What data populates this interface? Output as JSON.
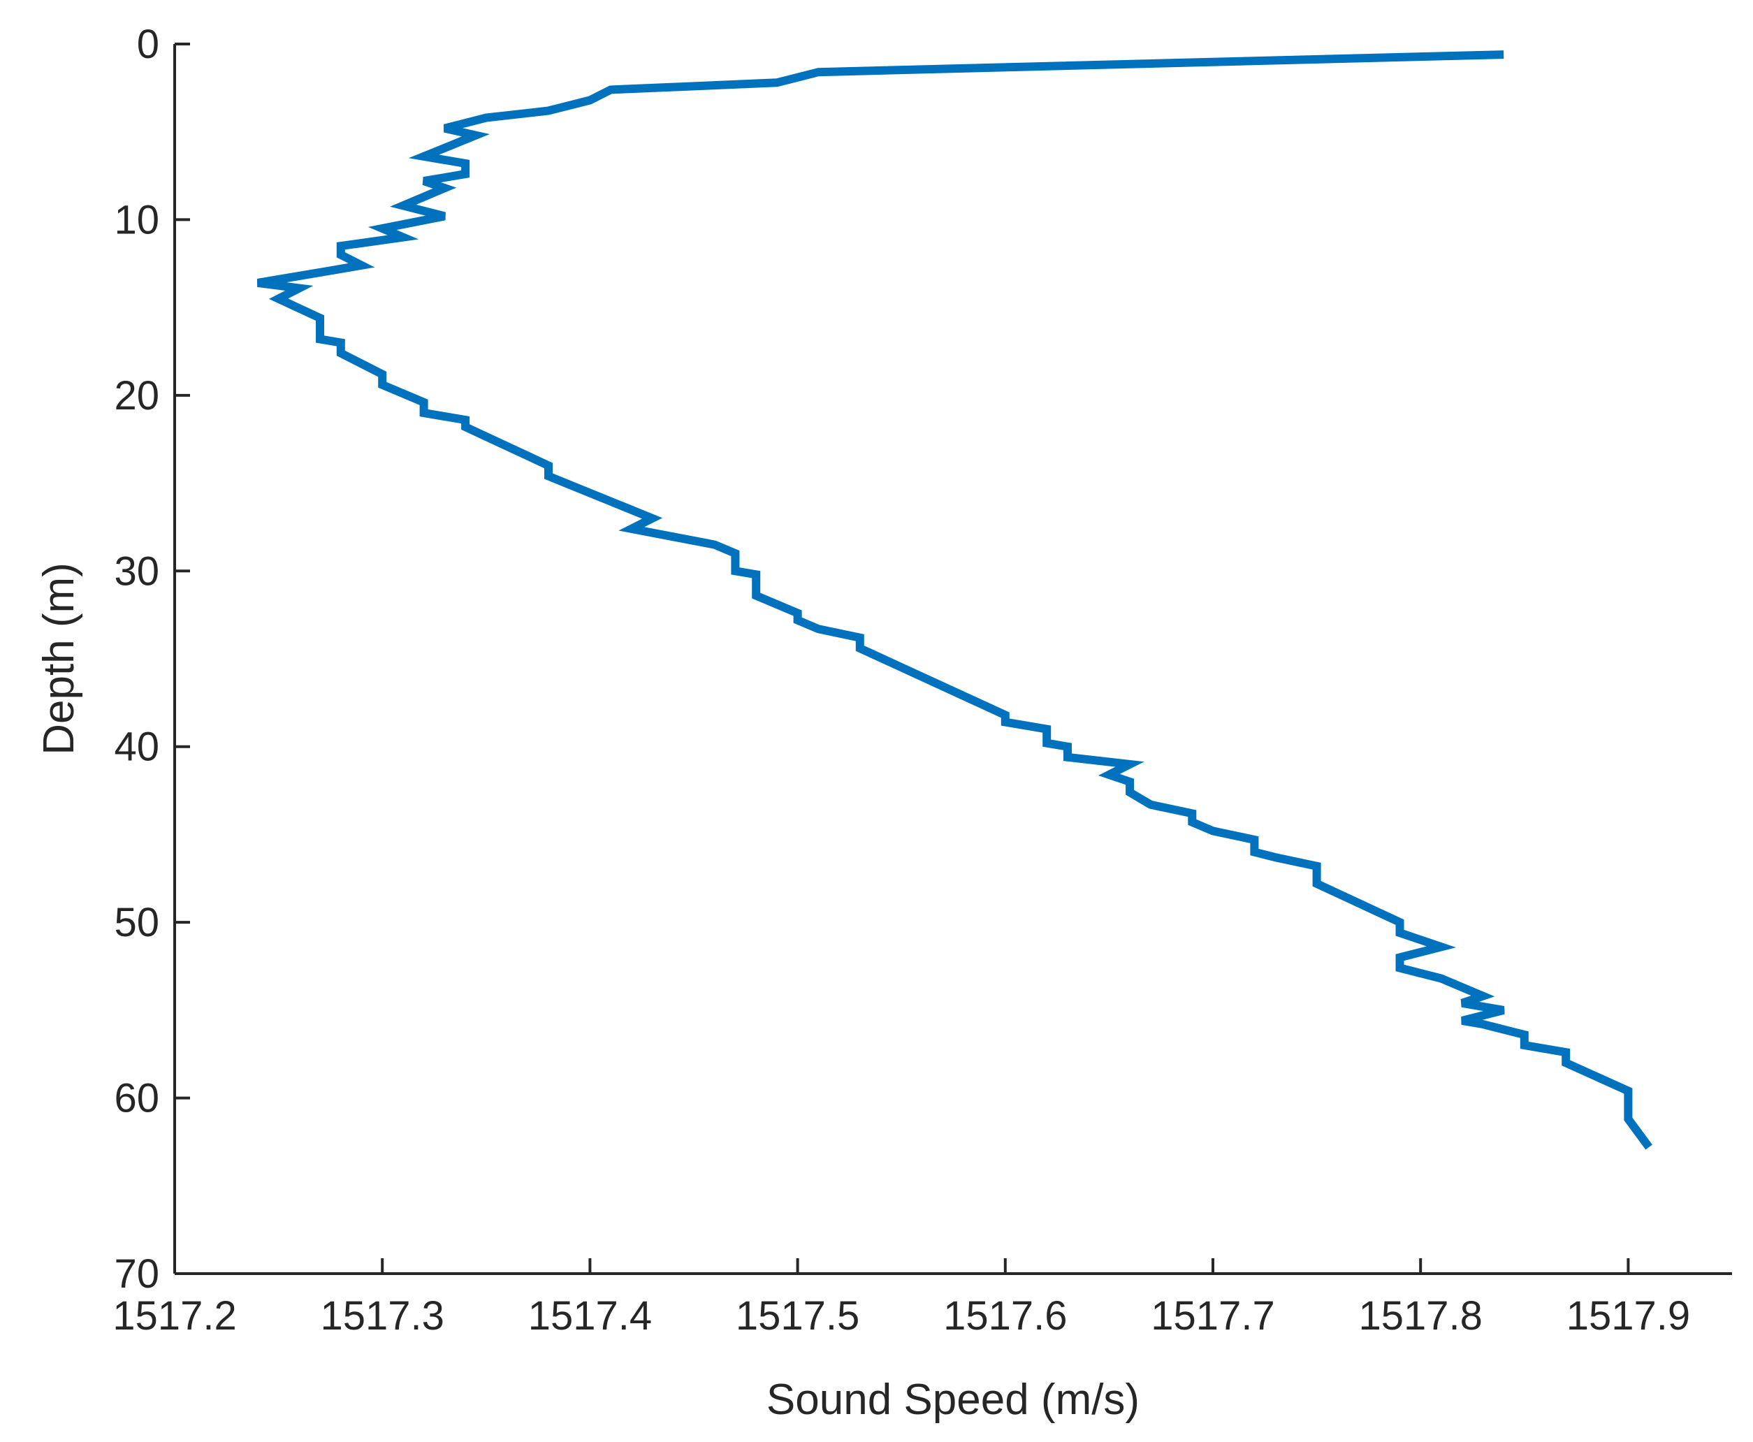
{
  "chart_data": {
    "type": "line",
    "title": "",
    "xlabel": "Sound Speed (m/s)",
    "ylabel": "Depth (m)",
    "xlim": [
      1517.2,
      1517.95
    ],
    "ylim": [
      0,
      70
    ],
    "y_reversed": true,
    "x_ticks": [
      "1517.2",
      "1517.3",
      "1517.4",
      "1517.5",
      "1517.6",
      "1517.7",
      "1517.8",
      "1517.9"
    ],
    "y_ticks": [
      "0",
      "10",
      "20",
      "30",
      "40",
      "50",
      "60",
      "70"
    ],
    "grid": false,
    "legend": "none",
    "series": [
      {
        "color": "#0072BD",
        "points": [
          [
            1517.84,
            0.6
          ],
          [
            1517.51,
            1.6
          ],
          [
            1517.49,
            2.2
          ],
          [
            1517.41,
            2.6
          ],
          [
            1517.4,
            3.2
          ],
          [
            1517.38,
            3.8
          ],
          [
            1517.35,
            4.2
          ],
          [
            1517.33,
            4.8
          ],
          [
            1517.345,
            5.2
          ],
          [
            1517.32,
            6.4
          ],
          [
            1517.34,
            6.8
          ],
          [
            1517.34,
            7.4
          ],
          [
            1517.32,
            7.8
          ],
          [
            1517.33,
            8.2
          ],
          [
            1517.31,
            9.2
          ],
          [
            1517.33,
            9.8
          ],
          [
            1517.3,
            10.5
          ],
          [
            1517.31,
            11.0
          ],
          [
            1517.28,
            11.5
          ],
          [
            1517.28,
            12.0
          ],
          [
            1517.29,
            12.6
          ],
          [
            1517.27,
            13.0
          ],
          [
            1517.24,
            13.6
          ],
          [
            1517.26,
            13.9
          ],
          [
            1517.25,
            14.5
          ],
          [
            1517.27,
            15.6
          ],
          [
            1517.27,
            16.8
          ],
          [
            1517.28,
            17.0
          ],
          [
            1517.28,
            17.6
          ],
          [
            1517.3,
            18.8
          ],
          [
            1517.3,
            19.4
          ],
          [
            1517.32,
            20.4
          ],
          [
            1517.32,
            21.0
          ],
          [
            1517.34,
            21.4
          ],
          [
            1517.34,
            21.8
          ],
          [
            1517.38,
            24.0
          ],
          [
            1517.38,
            24.6
          ],
          [
            1517.43,
            27.0
          ],
          [
            1517.42,
            27.6
          ],
          [
            1517.46,
            28.5
          ],
          [
            1517.47,
            29.0
          ],
          [
            1517.47,
            30.0
          ],
          [
            1517.48,
            30.2
          ],
          [
            1517.48,
            31.4
          ],
          [
            1517.5,
            32.4
          ],
          [
            1517.5,
            32.8
          ],
          [
            1517.51,
            33.3
          ],
          [
            1517.53,
            33.8
          ],
          [
            1517.53,
            34.4
          ],
          [
            1517.6,
            38.2
          ],
          [
            1517.6,
            38.6
          ],
          [
            1517.62,
            39.0
          ],
          [
            1517.62,
            39.8
          ],
          [
            1517.63,
            40.0
          ],
          [
            1517.63,
            40.6
          ],
          [
            1517.66,
            41.0
          ],
          [
            1517.65,
            41.6
          ],
          [
            1517.66,
            42.0
          ],
          [
            1517.66,
            42.6
          ],
          [
            1517.67,
            43.3
          ],
          [
            1517.69,
            43.8
          ],
          [
            1517.69,
            44.3
          ],
          [
            1517.7,
            44.8
          ],
          [
            1517.72,
            45.3
          ],
          [
            1517.72,
            46.0
          ],
          [
            1517.73,
            46.3
          ],
          [
            1517.75,
            46.8
          ],
          [
            1517.75,
            47.8
          ],
          [
            1517.79,
            50.0
          ],
          [
            1517.79,
            50.6
          ],
          [
            1517.81,
            51.4
          ],
          [
            1517.79,
            52.0
          ],
          [
            1517.79,
            52.6
          ],
          [
            1517.81,
            53.2
          ],
          [
            1517.83,
            54.2
          ],
          [
            1517.82,
            54.6
          ],
          [
            1517.84,
            55.0
          ],
          [
            1517.82,
            55.6
          ],
          [
            1517.83,
            55.8
          ],
          [
            1517.85,
            56.4
          ],
          [
            1517.85,
            57.0
          ],
          [
            1517.87,
            57.4
          ],
          [
            1517.87,
            58.0
          ],
          [
            1517.9,
            59.6
          ],
          [
            1517.9,
            61.2
          ],
          [
            1517.91,
            62.8
          ]
        ]
      }
    ]
  }
}
